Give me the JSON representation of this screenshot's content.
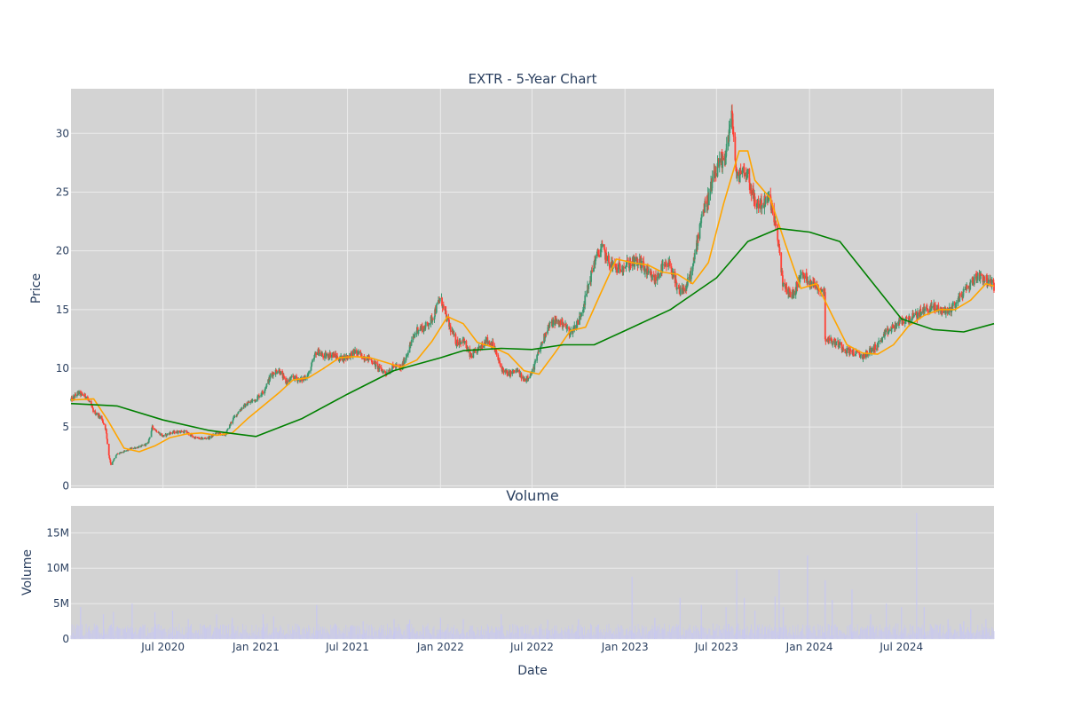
{
  "colors": {
    "plot_bg": "#d3d3d3",
    "grid": "#ebebeb",
    "text": "#2a3f5f",
    "increasing": "#3d9970",
    "decreasing": "#ff4136",
    "ma_short": "#ffa500",
    "ma_long": "#008000",
    "volume": "#c8c8f0"
  },
  "chart_data": [
    {
      "type": "candlestick",
      "title": "EXTR - 5-Year Chart",
      "xlabel": "",
      "ylabel": "Price",
      "xlim": [
        "2020-01-01",
        "2024-12-31"
      ],
      "ylim": [
        -0.2,
        33.8
      ],
      "yticks": [
        0,
        5,
        10,
        15,
        20,
        25,
        30
      ],
      "x_ticks": [
        "2020-07-01",
        "2021-01-01",
        "2021-07-01",
        "2022-01-01",
        "2022-07-01",
        "2023-01-01",
        "2023-07-01",
        "2024-01-01",
        "2024-07-01"
      ],
      "grid": true,
      "close_series": [
        [
          "2020-01-01",
          7.3
        ],
        [
          "2020-01-15",
          7.9
        ],
        [
          "2020-02-01",
          7.6
        ],
        [
          "2020-02-15",
          6.3
        ],
        [
          "2020-03-01",
          5.8
        ],
        [
          "2020-03-10",
          4.8
        ],
        [
          "2020-03-15",
          2.8
        ],
        [
          "2020-03-20",
          1.8
        ],
        [
          "2020-04-01",
          2.7
        ],
        [
          "2020-04-15",
          2.9
        ],
        [
          "2020-05-01",
          3.2
        ],
        [
          "2020-05-15",
          3.3
        ],
        [
          "2020-06-01",
          3.6
        ],
        [
          "2020-06-10",
          5.0
        ],
        [
          "2020-07-01",
          4.2
        ],
        [
          "2020-07-15",
          4.5
        ],
        [
          "2020-08-01",
          4.6
        ],
        [
          "2020-08-15",
          4.6
        ],
        [
          "2020-09-01",
          4.1
        ],
        [
          "2020-09-15",
          4.0
        ],
        [
          "2020-10-01",
          4.1
        ],
        [
          "2020-10-15",
          4.5
        ],
        [
          "2020-11-01",
          4.3
        ],
        [
          "2020-11-15",
          5.6
        ],
        [
          "2020-12-01",
          6.5
        ],
        [
          "2020-12-15",
          7.0
        ],
        [
          "2021-01-01",
          7.4
        ],
        [
          "2021-01-15",
          8.0
        ],
        [
          "2021-02-01",
          9.5
        ],
        [
          "2021-02-15",
          9.9
        ],
        [
          "2021-03-01",
          8.8
        ],
        [
          "2021-03-15",
          9.2
        ],
        [
          "2021-04-01",
          9.0
        ],
        [
          "2021-04-15",
          9.5
        ],
        [
          "2021-05-01",
          11.5
        ],
        [
          "2021-05-15",
          11.0
        ],
        [
          "2021-06-01",
          11.2
        ],
        [
          "2021-06-15",
          10.8
        ],
        [
          "2021-07-01",
          11.0
        ],
        [
          "2021-07-15",
          11.4
        ],
        [
          "2021-08-01",
          11.0
        ],
        [
          "2021-08-15",
          10.8
        ],
        [
          "2021-09-01",
          10.0
        ],
        [
          "2021-09-15",
          9.6
        ],
        [
          "2021-10-01",
          10.2
        ],
        [
          "2021-10-15",
          10.0
        ],
        [
          "2021-11-01",
          11.8
        ],
        [
          "2021-11-15",
          13.3
        ],
        [
          "2021-12-01",
          13.5
        ],
        [
          "2021-12-15",
          14.2
        ],
        [
          "2022-01-01",
          16.0
        ],
        [
          "2022-01-15",
          14.0
        ],
        [
          "2022-02-01",
          12.2
        ],
        [
          "2022-02-15",
          12.4
        ],
        [
          "2022-03-01",
          11.0
        ],
        [
          "2022-03-15",
          11.5
        ],
        [
          "2022-04-01",
          12.4
        ],
        [
          "2022-04-15",
          12.0
        ],
        [
          "2022-05-01",
          10.0
        ],
        [
          "2022-05-15",
          9.5
        ],
        [
          "2022-06-01",
          9.8
        ],
        [
          "2022-06-15",
          9.0
        ],
        [
          "2022-07-01",
          9.6
        ],
        [
          "2022-07-15",
          11.5
        ],
        [
          "2022-08-01",
          13.5
        ],
        [
          "2022-08-15",
          14.0
        ],
        [
          "2022-09-01",
          13.8
        ],
        [
          "2022-09-15",
          13.0
        ],
        [
          "2022-10-01",
          14.0
        ],
        [
          "2022-10-15",
          16.0
        ],
        [
          "2022-11-01",
          19.0
        ],
        [
          "2022-11-15",
          20.3
        ],
        [
          "2022-12-01",
          19.0
        ],
        [
          "2022-12-15",
          18.5
        ],
        [
          "2023-01-01",
          18.8
        ],
        [
          "2023-01-15",
          19.0
        ],
        [
          "2023-02-01",
          19.0
        ],
        [
          "2023-02-15",
          18.0
        ],
        [
          "2023-03-01",
          17.5
        ],
        [
          "2023-03-15",
          18.5
        ],
        [
          "2023-04-01",
          18.8
        ],
        [
          "2023-04-15",
          16.5
        ],
        [
          "2023-05-01",
          16.8
        ],
        [
          "2023-05-15",
          18.5
        ],
        [
          "2023-06-01",
          23.0
        ],
        [
          "2023-06-15",
          24.5
        ],
        [
          "2023-07-01",
          27.0
        ],
        [
          "2023-07-15",
          27.5
        ],
        [
          "2023-08-01",
          31.5
        ],
        [
          "2023-08-10",
          26.0
        ],
        [
          "2023-08-20",
          27.0
        ],
        [
          "2023-09-01",
          26.5
        ],
        [
          "2023-09-15",
          24.0
        ],
        [
          "2023-10-01",
          24.0
        ],
        [
          "2023-10-15",
          24.5
        ],
        [
          "2023-11-01",
          20.5
        ],
        [
          "2023-11-10",
          17.0
        ],
        [
          "2023-11-20",
          16.5
        ],
        [
          "2023-12-01",
          16.3
        ],
        [
          "2023-12-15",
          18.0
        ],
        [
          "2024-01-01",
          17.5
        ],
        [
          "2024-01-15",
          17.0
        ],
        [
          "2024-01-31",
          16.5
        ],
        [
          "2024-02-01",
          12.6
        ],
        [
          "2024-02-15",
          12.3
        ],
        [
          "2024-03-01",
          12.0
        ],
        [
          "2024-03-15",
          11.5
        ],
        [
          "2024-04-01",
          11.3
        ],
        [
          "2024-04-15",
          11.0
        ],
        [
          "2024-05-01",
          11.5
        ],
        [
          "2024-05-15",
          12.0
        ],
        [
          "2024-06-01",
          13.0
        ],
        [
          "2024-06-15",
          13.5
        ],
        [
          "2024-07-01",
          14.0
        ],
        [
          "2024-07-15",
          14.2
        ],
        [
          "2024-08-01",
          14.5
        ],
        [
          "2024-08-15",
          15.0
        ],
        [
          "2024-09-01",
          15.2
        ],
        [
          "2024-09-15",
          15.0
        ],
        [
          "2024-10-01",
          14.8
        ],
        [
          "2024-10-15",
          15.5
        ],
        [
          "2024-11-01",
          16.5
        ],
        [
          "2024-11-15",
          17.2
        ],
        [
          "2024-12-01",
          18.0
        ],
        [
          "2024-12-31",
          17.0
        ]
      ],
      "series": [
        {
          "kind": "moving-average",
          "color": "#ffa500",
          "points": [
            [
              "2020-01-01",
              7.3
            ],
            [
              "2020-02-15",
              7.4
            ],
            [
              "2020-03-15",
              5.5
            ],
            [
              "2020-04-15",
              3.2
            ],
            [
              "2020-05-15",
              2.9
            ],
            [
              "2020-06-15",
              3.4
            ],
            [
              "2020-07-15",
              4.1
            ],
            [
              "2020-08-15",
              4.4
            ],
            [
              "2020-09-15",
              4.5
            ],
            [
              "2020-10-15",
              4.3
            ],
            [
              "2020-11-15",
              4.5
            ],
            [
              "2020-12-15",
              5.7
            ],
            [
              "2021-01-15",
              6.8
            ],
            [
              "2021-02-15",
              7.9
            ],
            [
              "2021-03-15",
              9.0
            ],
            [
              "2021-04-15",
              9.2
            ],
            [
              "2021-05-15",
              10.0
            ],
            [
              "2021-06-15",
              10.9
            ],
            [
              "2021-07-15",
              11.0
            ],
            [
              "2021-08-15",
              10.9
            ],
            [
              "2021-09-15",
              10.5
            ],
            [
              "2021-10-15",
              10.1
            ],
            [
              "2021-11-15",
              10.7
            ],
            [
              "2021-12-15",
              12.3
            ],
            [
              "2022-01-15",
              14.4
            ],
            [
              "2022-02-15",
              13.8
            ],
            [
              "2022-03-15",
              12.2
            ],
            [
              "2022-04-15",
              11.8
            ],
            [
              "2022-05-15",
              11.2
            ],
            [
              "2022-06-15",
              9.8
            ],
            [
              "2022-07-15",
              9.5
            ],
            [
              "2022-08-15",
              11.3
            ],
            [
              "2022-09-15",
              13.2
            ],
            [
              "2022-10-15",
              13.5
            ],
            [
              "2022-11-15",
              16.5
            ],
            [
              "2022-12-15",
              19.3
            ],
            [
              "2023-01-15",
              19.0
            ],
            [
              "2023-02-15",
              18.8
            ],
            [
              "2023-03-15",
              18.2
            ],
            [
              "2023-04-15",
              18.0
            ],
            [
              "2023-05-15",
              17.2
            ],
            [
              "2023-06-15",
              19.0
            ],
            [
              "2023-07-15",
              24.0
            ],
            [
              "2023-08-15",
              28.5
            ],
            [
              "2023-09-01",
              28.5
            ],
            [
              "2023-09-15",
              26.0
            ],
            [
              "2023-10-15",
              24.5
            ],
            [
              "2023-11-15",
              20.5
            ],
            [
              "2023-12-15",
              16.8
            ],
            [
              "2024-01-15",
              17.2
            ],
            [
              "2024-02-15",
              14.5
            ],
            [
              "2024-03-15",
              12.0
            ],
            [
              "2024-04-15",
              11.3
            ],
            [
              "2024-05-15",
              11.2
            ],
            [
              "2024-06-15",
              12.0
            ],
            [
              "2024-07-15",
              13.6
            ],
            [
              "2024-08-15",
              14.5
            ],
            [
              "2024-09-15",
              15.0
            ],
            [
              "2024-10-15",
              15.0
            ],
            [
              "2024-11-15",
              15.8
            ],
            [
              "2024-12-15",
              17.2
            ],
            [
              "2024-12-31",
              17.0
            ]
          ]
        },
        {
          "kind": "moving-average",
          "color": "#008000",
          "points": [
            [
              "2020-01-01",
              7.0
            ],
            [
              "2020-04-01",
              6.8
            ],
            [
              "2020-07-01",
              5.6
            ],
            [
              "2020-10-01",
              4.7
            ],
            [
              "2021-01-01",
              4.2
            ],
            [
              "2021-04-01",
              5.7
            ],
            [
              "2021-07-01",
              7.8
            ],
            [
              "2021-10-01",
              9.8
            ],
            [
              "2022-01-01",
              10.9
            ],
            [
              "2022-02-15",
              11.5
            ],
            [
              "2022-05-01",
              11.7
            ],
            [
              "2022-07-01",
              11.6
            ],
            [
              "2022-09-01",
              12.0
            ],
            [
              "2022-11-01",
              12.0
            ],
            [
              "2023-01-01",
              13.2
            ],
            [
              "2023-04-01",
              15.0
            ],
            [
              "2023-07-01",
              17.7
            ],
            [
              "2023-09-01",
              20.8
            ],
            [
              "2023-11-01",
              21.9
            ],
            [
              "2024-01-01",
              21.6
            ],
            [
              "2024-03-01",
              20.8
            ],
            [
              "2024-05-01",
              17.5
            ],
            [
              "2024-07-01",
              14.2
            ],
            [
              "2024-09-01",
              13.3
            ],
            [
              "2024-11-01",
              13.1
            ],
            [
              "2024-12-31",
              13.8
            ]
          ]
        }
      ]
    },
    {
      "type": "bar",
      "title": "Volume",
      "xlabel": "Date",
      "ylabel": "Volume",
      "xlim": [
        "2020-01-01",
        "2024-12-31"
      ],
      "ylim": [
        0,
        18.8
      ],
      "y_unit": "M",
      "grid": true,
      "yticks": [
        {
          "value": 0,
          "label": "0"
        },
        {
          "value": 5,
          "label": "5M"
        },
        {
          "value": 10,
          "label": "10M"
        },
        {
          "value": 15,
          "label": "15M"
        }
      ],
      "x_tick_labels": [
        "Jul 2020",
        "Jan 2021",
        "Jul 2021",
        "Jan 2022",
        "Jul 2022",
        "Jan 2023",
        "Jul 2023",
        "Jan 2024",
        "Jul 2024"
      ],
      "baseline_range_M": [
        0.4,
        2.2
      ],
      "spikes": [
        [
          "2020-01-20",
          4.5
        ],
        [
          "2020-03-05",
          3.5
        ],
        [
          "2020-03-25",
          3.8
        ],
        [
          "2020-05-01",
          5.0
        ],
        [
          "2020-06-15",
          3.8
        ],
        [
          "2020-07-20",
          4.0
        ],
        [
          "2020-08-20",
          2.8
        ],
        [
          "2020-10-15",
          3.5
        ],
        [
          "2020-11-15",
          3.0
        ],
        [
          "2021-01-15",
          3.5
        ],
        [
          "2021-02-05",
          3.2
        ],
        [
          "2021-05-01",
          4.8
        ],
        [
          "2021-08-01",
          2.5
        ],
        [
          "2021-10-01",
          2.8
        ],
        [
          "2021-11-01",
          2.7
        ],
        [
          "2022-01-01",
          3.0
        ],
        [
          "2022-02-15",
          2.8
        ],
        [
          "2022-05-01",
          3.5
        ],
        [
          "2022-08-01",
          2.7
        ],
        [
          "2022-10-01",
          2.8
        ],
        [
          "2023-01-15",
          8.8
        ],
        [
          "2023-03-01",
          3.0
        ],
        [
          "2023-04-20",
          5.8
        ],
        [
          "2023-06-01",
          4.8
        ],
        [
          "2023-07-20",
          4.5
        ],
        [
          "2023-08-10",
          9.8
        ],
        [
          "2023-08-25",
          5.8
        ],
        [
          "2023-09-15",
          4.0
        ],
        [
          "2023-10-25",
          6.0
        ],
        [
          "2023-11-02",
          9.8
        ],
        [
          "2023-11-10",
          4.5
        ],
        [
          "2023-12-28",
          11.8
        ],
        [
          "2024-02-01",
          8.3
        ],
        [
          "2024-02-15",
          5.5
        ],
        [
          "2024-03-25",
          7.0
        ],
        [
          "2024-05-01",
          3.5
        ],
        [
          "2024-06-01",
          5.0
        ],
        [
          "2024-07-01",
          4.5
        ],
        [
          "2024-07-31",
          17.8
        ],
        [
          "2024-08-15",
          4.5
        ],
        [
          "2024-10-01",
          2.8
        ],
        [
          "2024-11-01",
          2.5
        ],
        [
          "2024-11-15",
          4.2
        ],
        [
          "2024-12-15",
          2.8
        ]
      ]
    }
  ]
}
